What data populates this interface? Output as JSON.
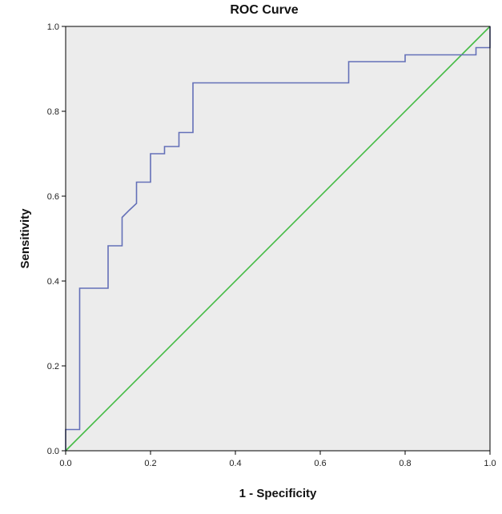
{
  "chart_data": {
    "type": "line",
    "title": "ROC Curve",
    "xlabel": "1 - Specificity",
    "ylabel": "Sensitivity",
    "xlim": [
      0.0,
      1.0
    ],
    "ylim": [
      0.0,
      1.0
    ],
    "x_ticks": [
      "0.0",
      "0.2",
      "0.4",
      "0.6",
      "0.8",
      "1.0"
    ],
    "y_ticks": [
      "0.0",
      "0.2",
      "0.4",
      "0.6",
      "0.8",
      "1.0"
    ],
    "grid": false,
    "legend": "none",
    "plot_background": "#ececec",
    "series": [
      {
        "color": "#6470b8",
        "x": [
          0.0,
          0.0,
          0.033,
          0.033,
          0.1,
          0.1,
          0.133,
          0.133,
          0.15,
          0.167,
          0.167,
          0.2,
          0.2,
          0.233,
          0.233,
          0.267,
          0.267,
          0.3,
          0.3,
          0.667,
          0.667,
          0.8,
          0.8,
          0.967,
          0.967,
          1.0,
          1.0
        ],
        "y": [
          0.0,
          0.05,
          0.05,
          0.383,
          0.383,
          0.483,
          0.483,
          0.55,
          0.567,
          0.583,
          0.633,
          0.633,
          0.7,
          0.7,
          0.717,
          0.717,
          0.75,
          0.75,
          0.867,
          0.867,
          0.917,
          0.917,
          0.933,
          0.933,
          0.95,
          0.95,
          1.0
        ]
      },
      {
        "color": "#44bb44",
        "x": [
          0.0,
          1.0
        ],
        "y": [
          0.0,
          1.0
        ]
      }
    ]
  }
}
